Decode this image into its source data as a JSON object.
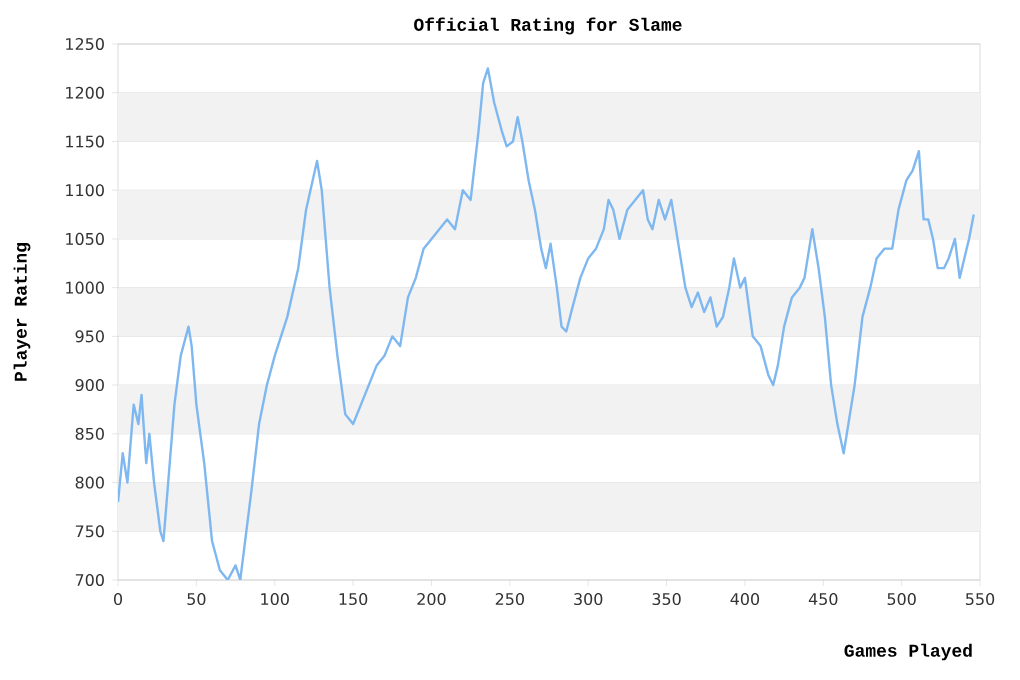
{
  "chart_data": {
    "type": "line",
    "title": "Official Rating for Slame",
    "xlabel": "Games Played",
    "ylabel": "Player Rating",
    "xlim": [
      0,
      550
    ],
    "ylim": [
      700,
      1250
    ],
    "xticks": [
      0,
      50,
      100,
      150,
      200,
      250,
      300,
      350,
      400,
      450,
      500,
      550
    ],
    "yticks": [
      700,
      750,
      800,
      850,
      900,
      950,
      1000,
      1050,
      1100,
      1150,
      1200,
      1250
    ],
    "grid": "y",
    "marker": "none",
    "line_style": "solid",
    "series": [
      {
        "color": "#7fb8f0",
        "x": [
          0,
          3,
          6,
          10,
          13,
          15,
          18,
          20,
          23,
          27,
          29,
          32,
          36,
          40,
          45,
          47,
          50,
          55,
          60,
          65,
          70,
          75,
          78,
          85,
          90,
          95,
          100,
          108,
          115,
          120,
          127,
          130,
          135,
          140,
          145,
          150,
          155,
          160,
          165,
          170,
          175,
          180,
          185,
          190,
          195,
          200,
          205,
          210,
          215,
          220,
          225,
          230,
          233,
          236,
          240,
          245,
          248,
          252,
          255,
          258,
          262,
          266,
          270,
          273,
          276,
          280,
          283,
          286,
          290,
          295,
          300,
          305,
          310,
          313,
          316,
          320,
          325,
          330,
          335,
          338,
          341,
          345,
          349,
          353,
          357,
          362,
          366,
          370,
          374,
          378,
          382,
          386,
          390,
          393,
          397,
          400,
          405,
          410,
          415,
          418,
          421,
          425,
          430,
          435,
          438,
          443,
          447,
          451,
          455,
          459,
          463,
          467,
          470,
          475,
          480,
          484,
          489,
          494,
          498,
          503,
          507,
          511,
          514,
          517,
          520,
          523,
          527,
          530,
          534,
          537,
          540,
          543,
          546
        ],
        "values": [
          780,
          830,
          800,
          880,
          860,
          890,
          820,
          850,
          800,
          750,
          740,
          800,
          880,
          930,
          960,
          940,
          880,
          820,
          740,
          710,
          700,
          715,
          700,
          790,
          860,
          900,
          930,
          970,
          1020,
          1080,
          1130,
          1100,
          1000,
          930,
          870,
          860,
          880,
          900,
          920,
          930,
          950,
          940,
          990,
          1010,
          1040,
          1050,
          1060,
          1070,
          1060,
          1100,
          1090,
          1160,
          1210,
          1225,
          1190,
          1160,
          1145,
          1150,
          1175,
          1150,
          1110,
          1080,
          1040,
          1020,
          1045,
          1000,
          960,
          955,
          980,
          1010,
          1030,
          1040,
          1060,
          1090,
          1080,
          1050,
          1080,
          1090,
          1100,
          1070,
          1060,
          1090,
          1070,
          1090,
          1050,
          1000,
          980,
          995,
          975,
          990,
          960,
          970,
          1000,
          1030,
          1000,
          1010,
          950,
          940,
          910,
          900,
          920,
          960,
          990,
          1000,
          1010,
          1060,
          1020,
          970,
          900,
          860,
          830,
          870,
          900,
          970,
          1000,
          1030,
          1040,
          1040,
          1080,
          1110,
          1120,
          1140,
          1070,
          1070,
          1050,
          1020,
          1020,
          1030,
          1050,
          1010,
          1030,
          1050,
          1075
        ]
      }
    ]
  }
}
